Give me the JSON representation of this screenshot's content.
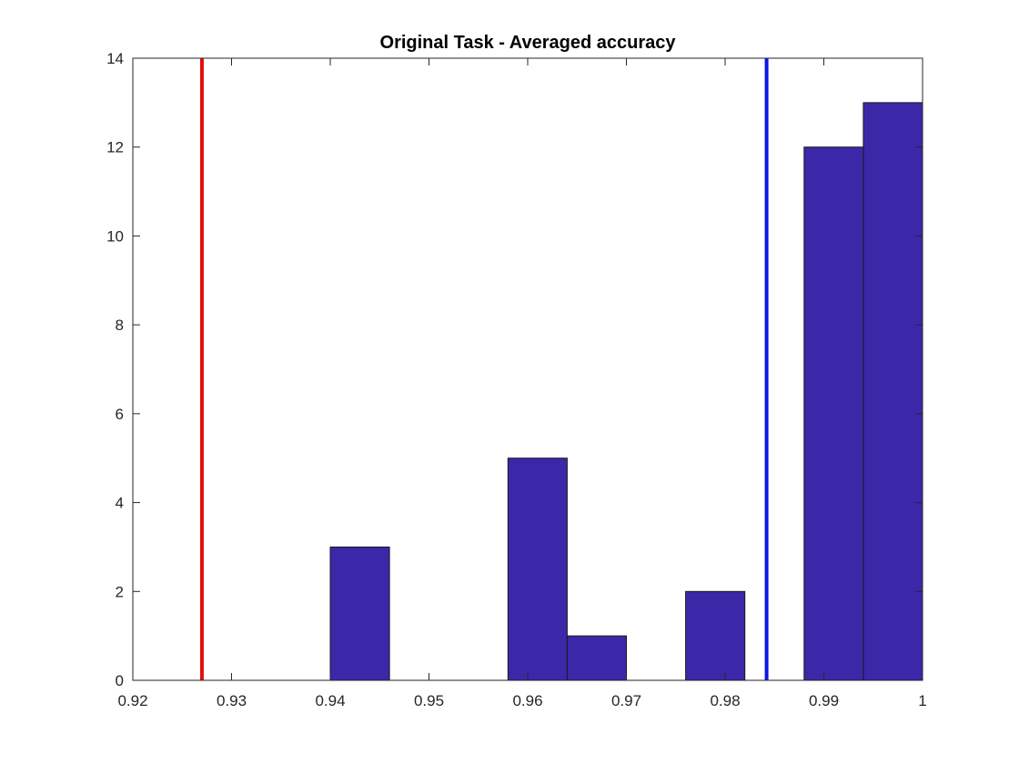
{
  "chart_data": {
    "type": "bar",
    "title": "Original Task - Averaged accuracy",
    "xlabel": "",
    "ylabel": "",
    "xlim": [
      0.92,
      1.0
    ],
    "ylim": [
      0,
      14
    ],
    "xticks": [
      0.92,
      0.93,
      0.94,
      0.95,
      0.96,
      0.97,
      0.98,
      0.99,
      1.0
    ],
    "xtick_labels": [
      "0.92",
      "0.93",
      "0.94",
      "0.95",
      "0.96",
      "0.97",
      "0.98",
      "0.99",
      "1"
    ],
    "yticks": [
      0,
      2,
      4,
      6,
      8,
      10,
      12,
      14
    ],
    "ytick_labels": [
      "0",
      "2",
      "4",
      "6",
      "8",
      "10",
      "12",
      "14"
    ],
    "bin_width": 0.006,
    "bins": [
      {
        "x0": 0.94,
        "x1": 0.946,
        "count": 3
      },
      {
        "x0": 0.946,
        "x1": 0.952,
        "count": 0
      },
      {
        "x0": 0.952,
        "x1": 0.958,
        "count": 0
      },
      {
        "x0": 0.958,
        "x1": 0.964,
        "count": 5
      },
      {
        "x0": 0.964,
        "x1": 0.97,
        "count": 1
      },
      {
        "x0": 0.97,
        "x1": 0.976,
        "count": 0
      },
      {
        "x0": 0.976,
        "x1": 0.982,
        "count": 2
      },
      {
        "x0": 0.982,
        "x1": 0.988,
        "count": 0
      },
      {
        "x0": 0.988,
        "x1": 0.994,
        "count": 12
      },
      {
        "x0": 0.994,
        "x1": 1.0,
        "count": 13
      }
    ],
    "bar_color": "#3b28a8",
    "reference_lines": [
      {
        "x": 0.927,
        "color": "#e01010"
      },
      {
        "x": 0.9842,
        "color": "#0a16e0"
      }
    ],
    "grid": false,
    "box": true
  }
}
